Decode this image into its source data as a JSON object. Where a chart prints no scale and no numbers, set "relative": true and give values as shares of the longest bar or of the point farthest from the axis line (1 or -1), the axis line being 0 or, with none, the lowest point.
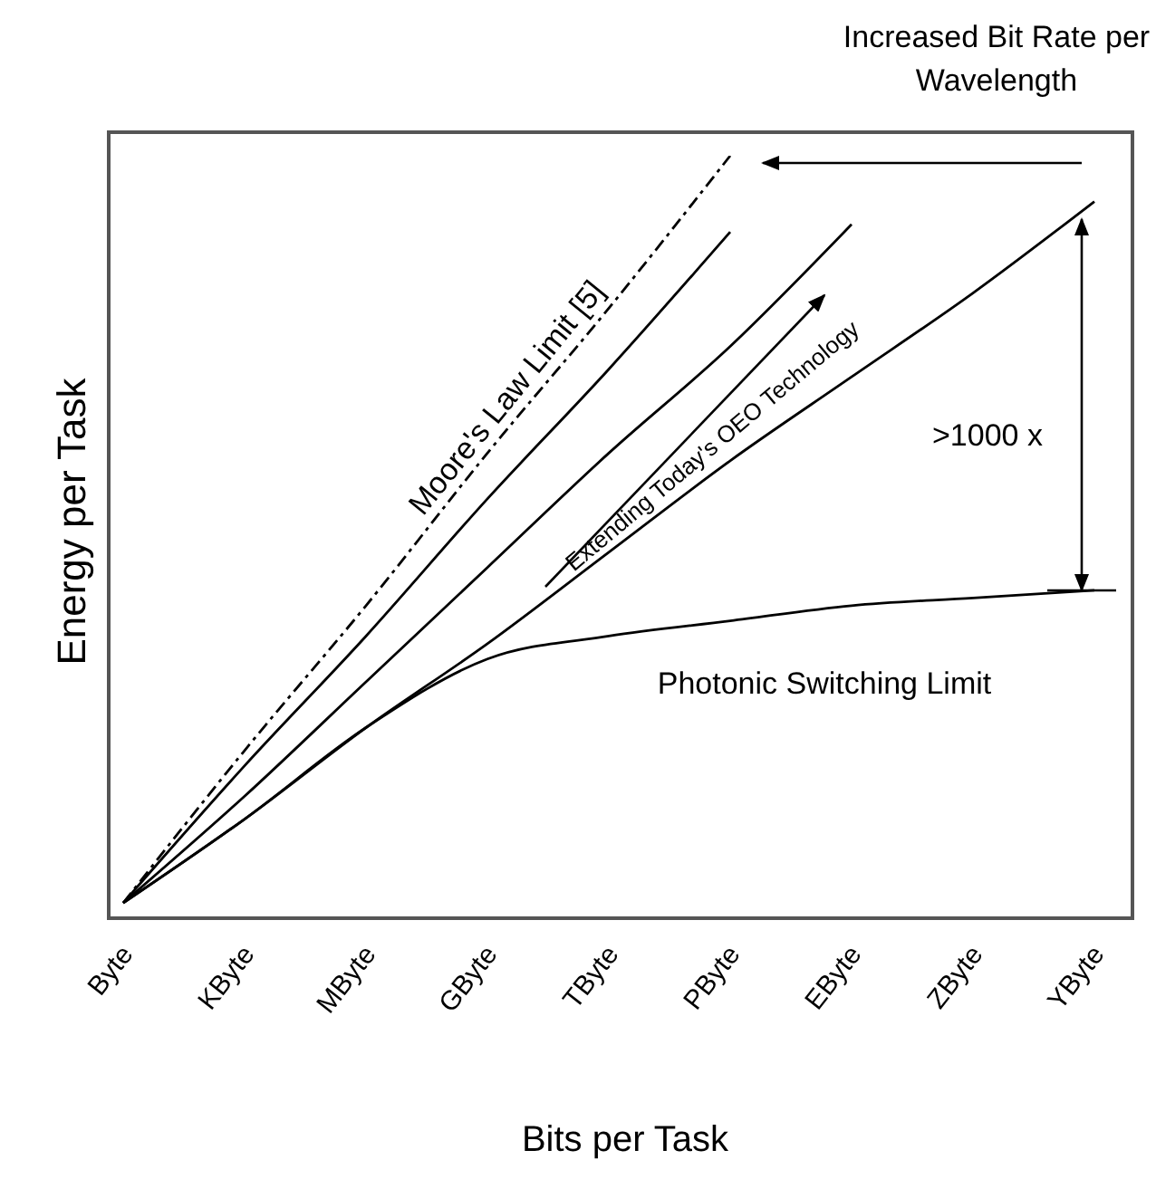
{
  "chart_data": {
    "type": "line",
    "relative": true,
    "xlabel": "Bits per Task",
    "ylabel": "Energy per Task",
    "categories": [
      "Byte",
      "KByte",
      "MByte",
      "GByte",
      "TByte",
      "PByte",
      "EByte",
      "ZByte",
      "YByte"
    ],
    "series": [
      {
        "name": "Moore's Law Limit [5]",
        "color": "#000000",
        "line_style": "dashed",
        "values": [
          0.02,
          0.22,
          0.41,
          0.61,
          0.8,
          1.0,
          null,
          null,
          null
        ]
      },
      {
        "color": "#000000",
        "values": [
          0.02,
          0.2,
          0.37,
          0.55,
          0.72,
          0.9,
          null,
          null,
          null
        ]
      },
      {
        "color": "#000000",
        "values": [
          0.02,
          0.16,
          0.31,
          0.46,
          0.61,
          0.75,
          0.91,
          null,
          null
        ]
      },
      {
        "color": "#000000",
        "values": [
          0.02,
          0.13,
          0.25,
          0.36,
          0.48,
          0.6,
          0.71,
          0.82,
          0.94
        ]
      },
      {
        "name": "Photonic Switching Limit",
        "color": "#000000",
        "values": [
          0.02,
          0.13,
          0.25,
          0.34,
          0.37,
          0.39,
          0.41,
          0.42,
          0.43
        ]
      }
    ],
    "annotations": [
      "Increased Bit Rate per Wavelength",
      "Extending Today's OEO Technology",
      ">1000 x"
    ]
  }
}
